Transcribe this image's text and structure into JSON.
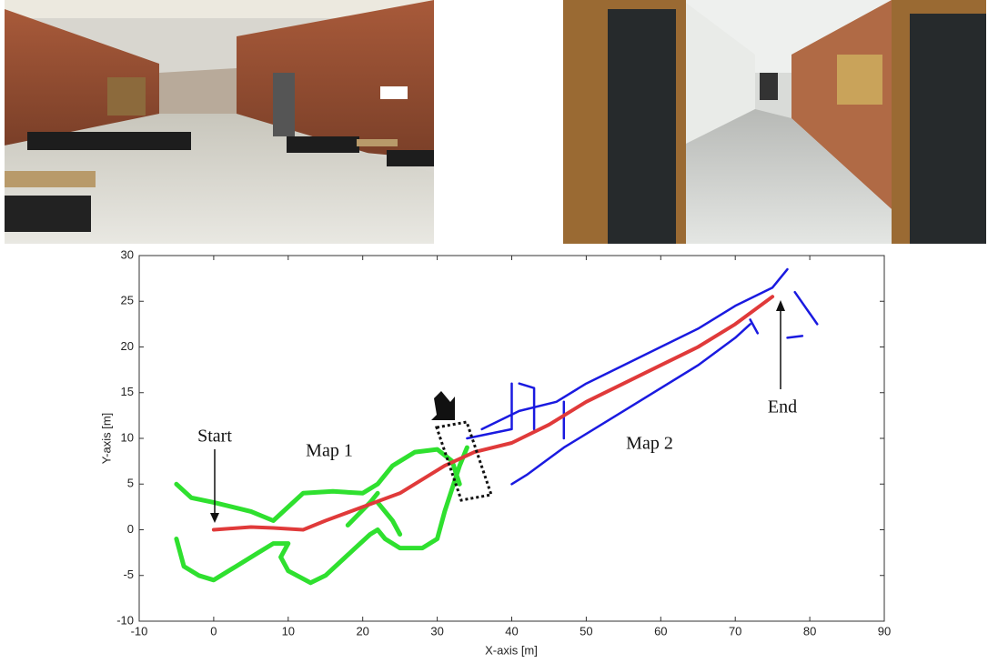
{
  "chart_data": {
    "type": "line",
    "xlabel": "X-axis [m]",
    "ylabel": "Y-axis [m]",
    "xlim": [
      -10,
      90
    ],
    "ylim": [
      -10,
      30
    ],
    "xticks": [
      -10,
      0,
      10,
      20,
      30,
      40,
      50,
      60,
      70,
      80,
      90
    ],
    "yticks": [
      -10,
      -5,
      0,
      5,
      10,
      15,
      20,
      25,
      30
    ],
    "series": [
      {
        "name": "Map 1",
        "color": "#2fe02f",
        "x": [
          -5,
          -3,
          0,
          5,
          8,
          10,
          12,
          16,
          20,
          22,
          24,
          27,
          30,
          32,
          33,
          null,
          -5,
          -4,
          -2,
          0,
          3,
          6,
          8,
          10,
          9,
          10,
          13,
          15,
          19,
          21,
          22,
          23,
          25,
          28,
          30,
          31,
          33,
          34,
          null,
          18,
          21,
          22,
          null,
          22,
          24,
          25
        ],
        "y": [
          5,
          3.5,
          3,
          2,
          1,
          2.5,
          4,
          4.2,
          4,
          5,
          7,
          8.5,
          8.8,
          7.5,
          5,
          null,
          -1,
          -4,
          -5,
          -5.5,
          -4,
          -2.5,
          -1.5,
          -1.5,
          -3,
          -4.5,
          -5.8,
          -5,
          -2,
          -0.5,
          0,
          -1,
          -2,
          -2,
          -1,
          2,
          7,
          9,
          null,
          0.5,
          3,
          4,
          null,
          3,
          1,
          -0.5
        ]
      },
      {
        "name": "Map 2",
        "color": "#1a1ae0",
        "x": [
          34,
          40,
          null,
          40,
          42,
          47,
          55,
          65,
          70,
          72,
          null,
          36,
          41,
          46,
          50,
          55,
          60,
          65,
          70,
          75,
          77,
          null,
          40,
          40,
          null,
          41,
          43,
          43,
          null,
          47,
          47,
          null,
          78,
          81,
          null,
          72,
          73,
          null,
          77,
          79
        ],
        "y": [
          10,
          11,
          null,
          5,
          6,
          9,
          13,
          18,
          21,
          22.5,
          null,
          11,
          13,
          14,
          16,
          18,
          20,
          22,
          24.5,
          26.5,
          28.5,
          null,
          16,
          11,
          null,
          16,
          15.5,
          11,
          null,
          10,
          14,
          null,
          26,
          22.5,
          null,
          23,
          21.5,
          null,
          21,
          21.2
        ]
      },
      {
        "color": "#e03a3a",
        "x": [
          0,
          5,
          8,
          12,
          15,
          20,
          25,
          28,
          31,
          35,
          40,
          45,
          50,
          55,
          60,
          65,
          70,
          75
        ],
        "y": [
          0,
          0.3,
          0.2,
          0,
          1,
          2.5,
          4,
          5.5,
          7,
          8.5,
          9.5,
          11.5,
          14,
          16,
          18,
          20,
          22.5,
          25.5
        ]
      }
    ],
    "annotations": [
      "Start",
      "End"
    ]
  }
}
